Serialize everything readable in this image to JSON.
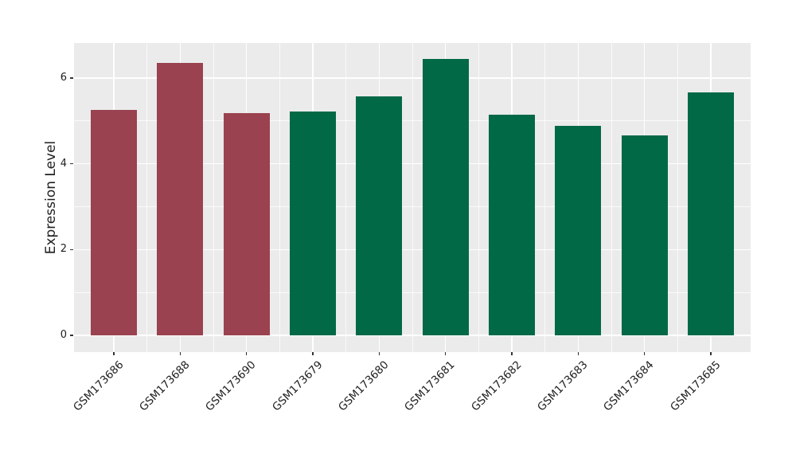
{
  "chart_data": {
    "type": "bar",
    "ylabel": "Expression Level",
    "categories": [
      "GSM173686",
      "GSM173688",
      "GSM173690",
      "GSM173679",
      "GSM173680",
      "GSM173681",
      "GSM173682",
      "GSM173683",
      "GSM173684",
      "GSM173685"
    ],
    "values": [
      5.26,
      6.35,
      5.18,
      5.22,
      5.57,
      6.45,
      5.15,
      4.89,
      4.66,
      5.67
    ],
    "groups": [
      "groupA",
      "groupA",
      "groupA",
      "groupB",
      "groupB",
      "groupB",
      "groupB",
      "groupB",
      "groupB",
      "groupB"
    ],
    "group_colors": {
      "groupA": "#9A4250",
      "groupB": "#016946"
    },
    "yticks_major": [
      0,
      2,
      4,
      6
    ],
    "yticks_minor": [
      1,
      3,
      5
    ],
    "ylim": [
      -0.39,
      6.82
    ],
    "grid": true,
    "legend": "none",
    "x_tick_rotation_deg": 45,
    "panel_background": "#EBEBEB",
    "grid_color": "#FFFFFF",
    "tick_color": "#333333",
    "text_color": "#212121",
    "figure_background": "#FFFFFF"
  }
}
